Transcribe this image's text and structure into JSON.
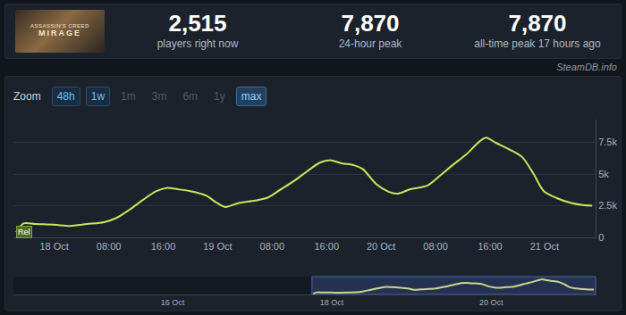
{
  "header": {
    "image_text": [
      "ASSASSIN'S CREED",
      "MIRAGE"
    ],
    "stats": [
      {
        "value": "2,515",
        "label": "players right now"
      },
      {
        "value": "7,870",
        "label": "24-hour peak"
      },
      {
        "value": "7,870",
        "label": "all-time peak 17 hours ago"
      }
    ],
    "source": "SteamDB.info"
  },
  "zoom": {
    "label": "Zoom",
    "buttons": [
      "48h",
      "1w",
      "1m",
      "3m",
      "6m",
      "1y",
      "max"
    ],
    "disabled": [
      "1m",
      "3m",
      "6m",
      "1y"
    ],
    "active": "max"
  },
  "chart_data": [
    {
      "type": "line",
      "color": "#c9e65a",
      "x": [
        -5.6,
        -4.5,
        -2.8,
        0,
        2.3,
        4.8,
        7.3,
        9.2,
        11.1,
        13,
        15,
        16.5,
        18.1,
        20,
        22.3,
        23.8,
        25.1,
        27,
        29.5,
        31.4,
        33.3,
        35.2,
        37.1,
        39,
        40.5,
        42.2,
        44,
        45.3,
        47.2,
        49.1,
        50.4,
        52.3,
        54.8,
        56.7,
        58.6,
        60.5,
        62.4,
        63.4,
        64.9,
        66.8,
        68.7,
        70.4,
        71.9,
        73.8,
        75.7,
        77.6,
        79
      ],
      "values": [
        400,
        1100,
        1050,
        1000,
        900,
        1050,
        1200,
        1550,
        2200,
        2950,
        3650,
        3900,
        3800,
        3650,
        3300,
        2750,
        2400,
        2700,
        2900,
        3150,
        3800,
        4450,
        5200,
        5900,
        6100,
        5850,
        5700,
        5400,
        4250,
        3600,
        3450,
        3800,
        4100,
        4900,
        5750,
        6550,
        7550,
        7870,
        7450,
        6950,
        6350,
        5000,
        3650,
        3100,
        2750,
        2550,
        2500
      ],
      "xlim": [
        -6,
        79.5
      ],
      "xticks": [
        {
          "value": 0,
          "label": "18 Oct"
        },
        {
          "value": 8,
          "label": "08:00"
        },
        {
          "value": 16,
          "label": "16:00"
        },
        {
          "value": 24,
          "label": "19 Oct"
        },
        {
          "value": 32,
          "label": "08:00"
        },
        {
          "value": 40,
          "label": "16:00"
        },
        {
          "value": 48,
          "label": "20 Oct"
        },
        {
          "value": 56,
          "label": "08:00"
        },
        {
          "value": 64,
          "label": "16:00"
        },
        {
          "value": 72,
          "label": "21 Oct"
        }
      ],
      "ylim": [
        0,
        9300
      ],
      "yticks": [
        0,
        {
          "value": 2500,
          "label": "2.5k"
        },
        {
          "value": 5000,
          "label": "5k"
        },
        {
          "value": 7500,
          "label": "7.5k"
        }
      ],
      "grid": true,
      "annotations": [
        {
          "x": -5.6,
          "y": 400,
          "text": "Rel"
        }
      ]
    },
    {
      "type": "line",
      "color": "#c9d88a",
      "x": [
        -5.6,
        -4.5,
        -2.8,
        0,
        2.3,
        4.8,
        7.3,
        9.2,
        11.1,
        13,
        15,
        16.5,
        18.1,
        20,
        22.3,
        23.8,
        25.1,
        27,
        29.5,
        31.4,
        33.3,
        35.2,
        37.1,
        39,
        40.5,
        42.2,
        44,
        45.3,
        47.2,
        49.1,
        50.4,
        52.3,
        54.8,
        56.7,
        58.6,
        60.5,
        62.4,
        63.4,
        64.9,
        66.8,
        68.7,
        70.4,
        71.9,
        73.8,
        75.7,
        77.6,
        79
      ],
      "values": [
        400,
        1100,
        1050,
        1000,
        900,
        1050,
        1200,
        1550,
        2200,
        2950,
        3650,
        3900,
        3800,
        3650,
        3300,
        2750,
        2400,
        2700,
        2900,
        3150,
        3800,
        4450,
        5200,
        5900,
        6100,
        5850,
        5700,
        5400,
        4250,
        3600,
        3450,
        3800,
        4100,
        4900,
        5750,
        6550,
        7550,
        7870,
        7450,
        6950,
        6350,
        5000,
        3650,
        3100,
        2750,
        2550,
        2500
      ],
      "xlim": [
        -96,
        79.5
      ],
      "xticks": [
        {
          "value": -48,
          "label": "16 Oct"
        },
        {
          "value": 0,
          "label": "18 Oct"
        },
        {
          "value": 48,
          "label": "20 Oct"
        }
      ],
      "ylim": [
        0,
        9300
      ],
      "grid": false,
      "tick_labels": "x"
    }
  ]
}
